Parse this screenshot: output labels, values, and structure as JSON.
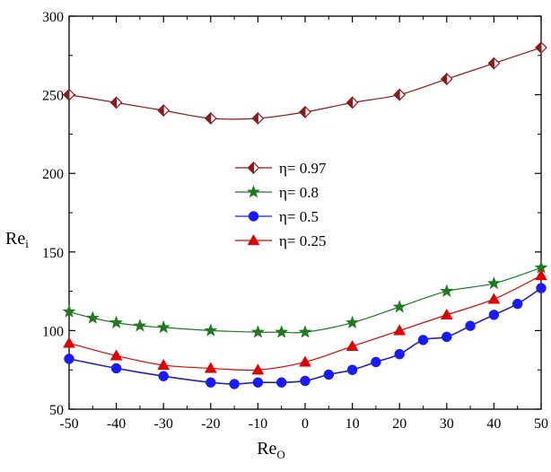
{
  "chart_data": {
    "type": "line",
    "title": "",
    "xlabel": "Re",
    "xlabel_sub": "O",
    "ylabel": "Re",
    "ylabel_sub": "i",
    "xlim": [
      -50,
      50
    ],
    "ylim": [
      50,
      300
    ],
    "xticks": [
      -50,
      -40,
      -30,
      -20,
      -10,
      0,
      10,
      20,
      30,
      40,
      50
    ],
    "yticks": [
      50,
      100,
      150,
      200,
      250,
      300
    ],
    "grid": false,
    "legend_position": "center-left",
    "series": [
      {
        "name": "η= 0.97",
        "color": "#8b1a1a",
        "marker": "half-diamond",
        "x": [
          -50,
          -40,
          -30,
          -20,
          -10,
          0,
          10,
          20,
          30,
          40,
          50
        ],
        "y": [
          250,
          245,
          240,
          235,
          235,
          239,
          245,
          250,
          260,
          270,
          280
        ]
      },
      {
        "name": "η= 0.8",
        "color": "#1f7a1f",
        "marker": "star",
        "x": [
          -50,
          -45,
          -40,
          -35,
          -30,
          -20,
          -10,
          -5,
          0,
          10,
          20,
          30,
          40,
          50
        ],
        "y": [
          112,
          108,
          105,
          103,
          102,
          100,
          99,
          99,
          99,
          105,
          115,
          125,
          130,
          140
        ]
      },
      {
        "name": "η= 0.5",
        "color": "#1a1aff",
        "marker": "circle",
        "x": [
          -50,
          -40,
          -30,
          -20,
          -15,
          -10,
          -5,
          0,
          5,
          10,
          15,
          20,
          25,
          30,
          35,
          40,
          45,
          50
        ],
        "y": [
          82,
          76,
          71,
          67,
          66,
          67,
          67,
          68,
          72,
          75,
          80,
          85,
          94,
          96,
          103,
          110,
          117,
          127
        ]
      },
      {
        "name": "η= 0.25",
        "color": "#e00000",
        "marker": "triangle",
        "x": [
          -50,
          -40,
          -30,
          -20,
          -10,
          0,
          10,
          20,
          30,
          40,
          50
        ],
        "y": [
          92,
          84,
          78,
          76,
          75,
          80,
          90,
          100,
          110,
          120,
          135
        ]
      }
    ]
  }
}
